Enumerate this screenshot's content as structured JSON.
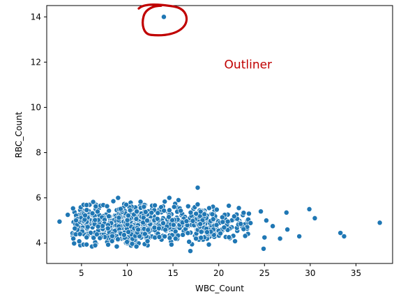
{
  "chart_data": {
    "type": "scatter",
    "xlabel": "WBC_Count",
    "ylabel": "RBC_Count",
    "xlim": [
      1.2,
      39.0
    ],
    "ylim": [
      3.1,
      14.5
    ],
    "xticks": [
      5,
      10,
      15,
      20,
      25,
      30,
      35
    ],
    "yticks": [
      4,
      6,
      8,
      10,
      12,
      14
    ],
    "grid": false,
    "point_color": "#1f77b4",
    "annotation": {
      "text": "Outliner",
      "color": "#c00000",
      "x": 20.6,
      "y": 11.9
    },
    "highlighted_point": {
      "x": 14.0,
      "y": 14.0,
      "circle_color": "#c00000"
    },
    "outliers": [
      {
        "x": 37.6,
        "y": 4.9
      },
      {
        "x": 33.3,
        "y": 4.45
      },
      {
        "x": 33.7,
        "y": 4.3
      },
      {
        "x": 30.5,
        "y": 5.1
      },
      {
        "x": 29.9,
        "y": 5.5
      },
      {
        "x": 28.8,
        "y": 4.3
      },
      {
        "x": 27.4,
        "y": 5.35
      },
      {
        "x": 27.5,
        "y": 4.6
      },
      {
        "x": 26.7,
        "y": 4.2
      },
      {
        "x": 25.9,
        "y": 4.75
      },
      {
        "x": 25.0,
        "y": 4.25
      },
      {
        "x": 24.9,
        "y": 3.75
      },
      {
        "x": 24.6,
        "y": 5.4
      },
      {
        "x": 25.2,
        "y": 5.0
      },
      {
        "x": 17.7,
        "y": 6.45
      },
      {
        "x": 14.6,
        "y": 6.0
      },
      {
        "x": 15.6,
        "y": 5.9
      },
      {
        "x": 16.9,
        "y": 3.65
      },
      {
        "x": 9.0,
        "y": 6.0
      },
      {
        "x": 2.6,
        "y": 4.95
      },
      {
        "x": 3.5,
        "y": 5.25
      },
      {
        "x": 22.2,
        "y": 5.55
      },
      {
        "x": 21.1,
        "y": 5.65
      },
      {
        "x": 6.5,
        "y": 3.9
      }
    ],
    "clusters": [
      {
        "x_center": 8.5,
        "x_spread": 4.5,
        "y_center": 4.85,
        "y_spread": 0.42,
        "count": 420
      },
      {
        "x_center": 14.5,
        "x_spread": 5.5,
        "y_center": 4.8,
        "y_spread": 0.4,
        "count": 360
      },
      {
        "x_center": 20.5,
        "x_spread": 3.0,
        "y_center": 4.8,
        "y_spread": 0.35,
        "count": 90
      }
    ]
  }
}
